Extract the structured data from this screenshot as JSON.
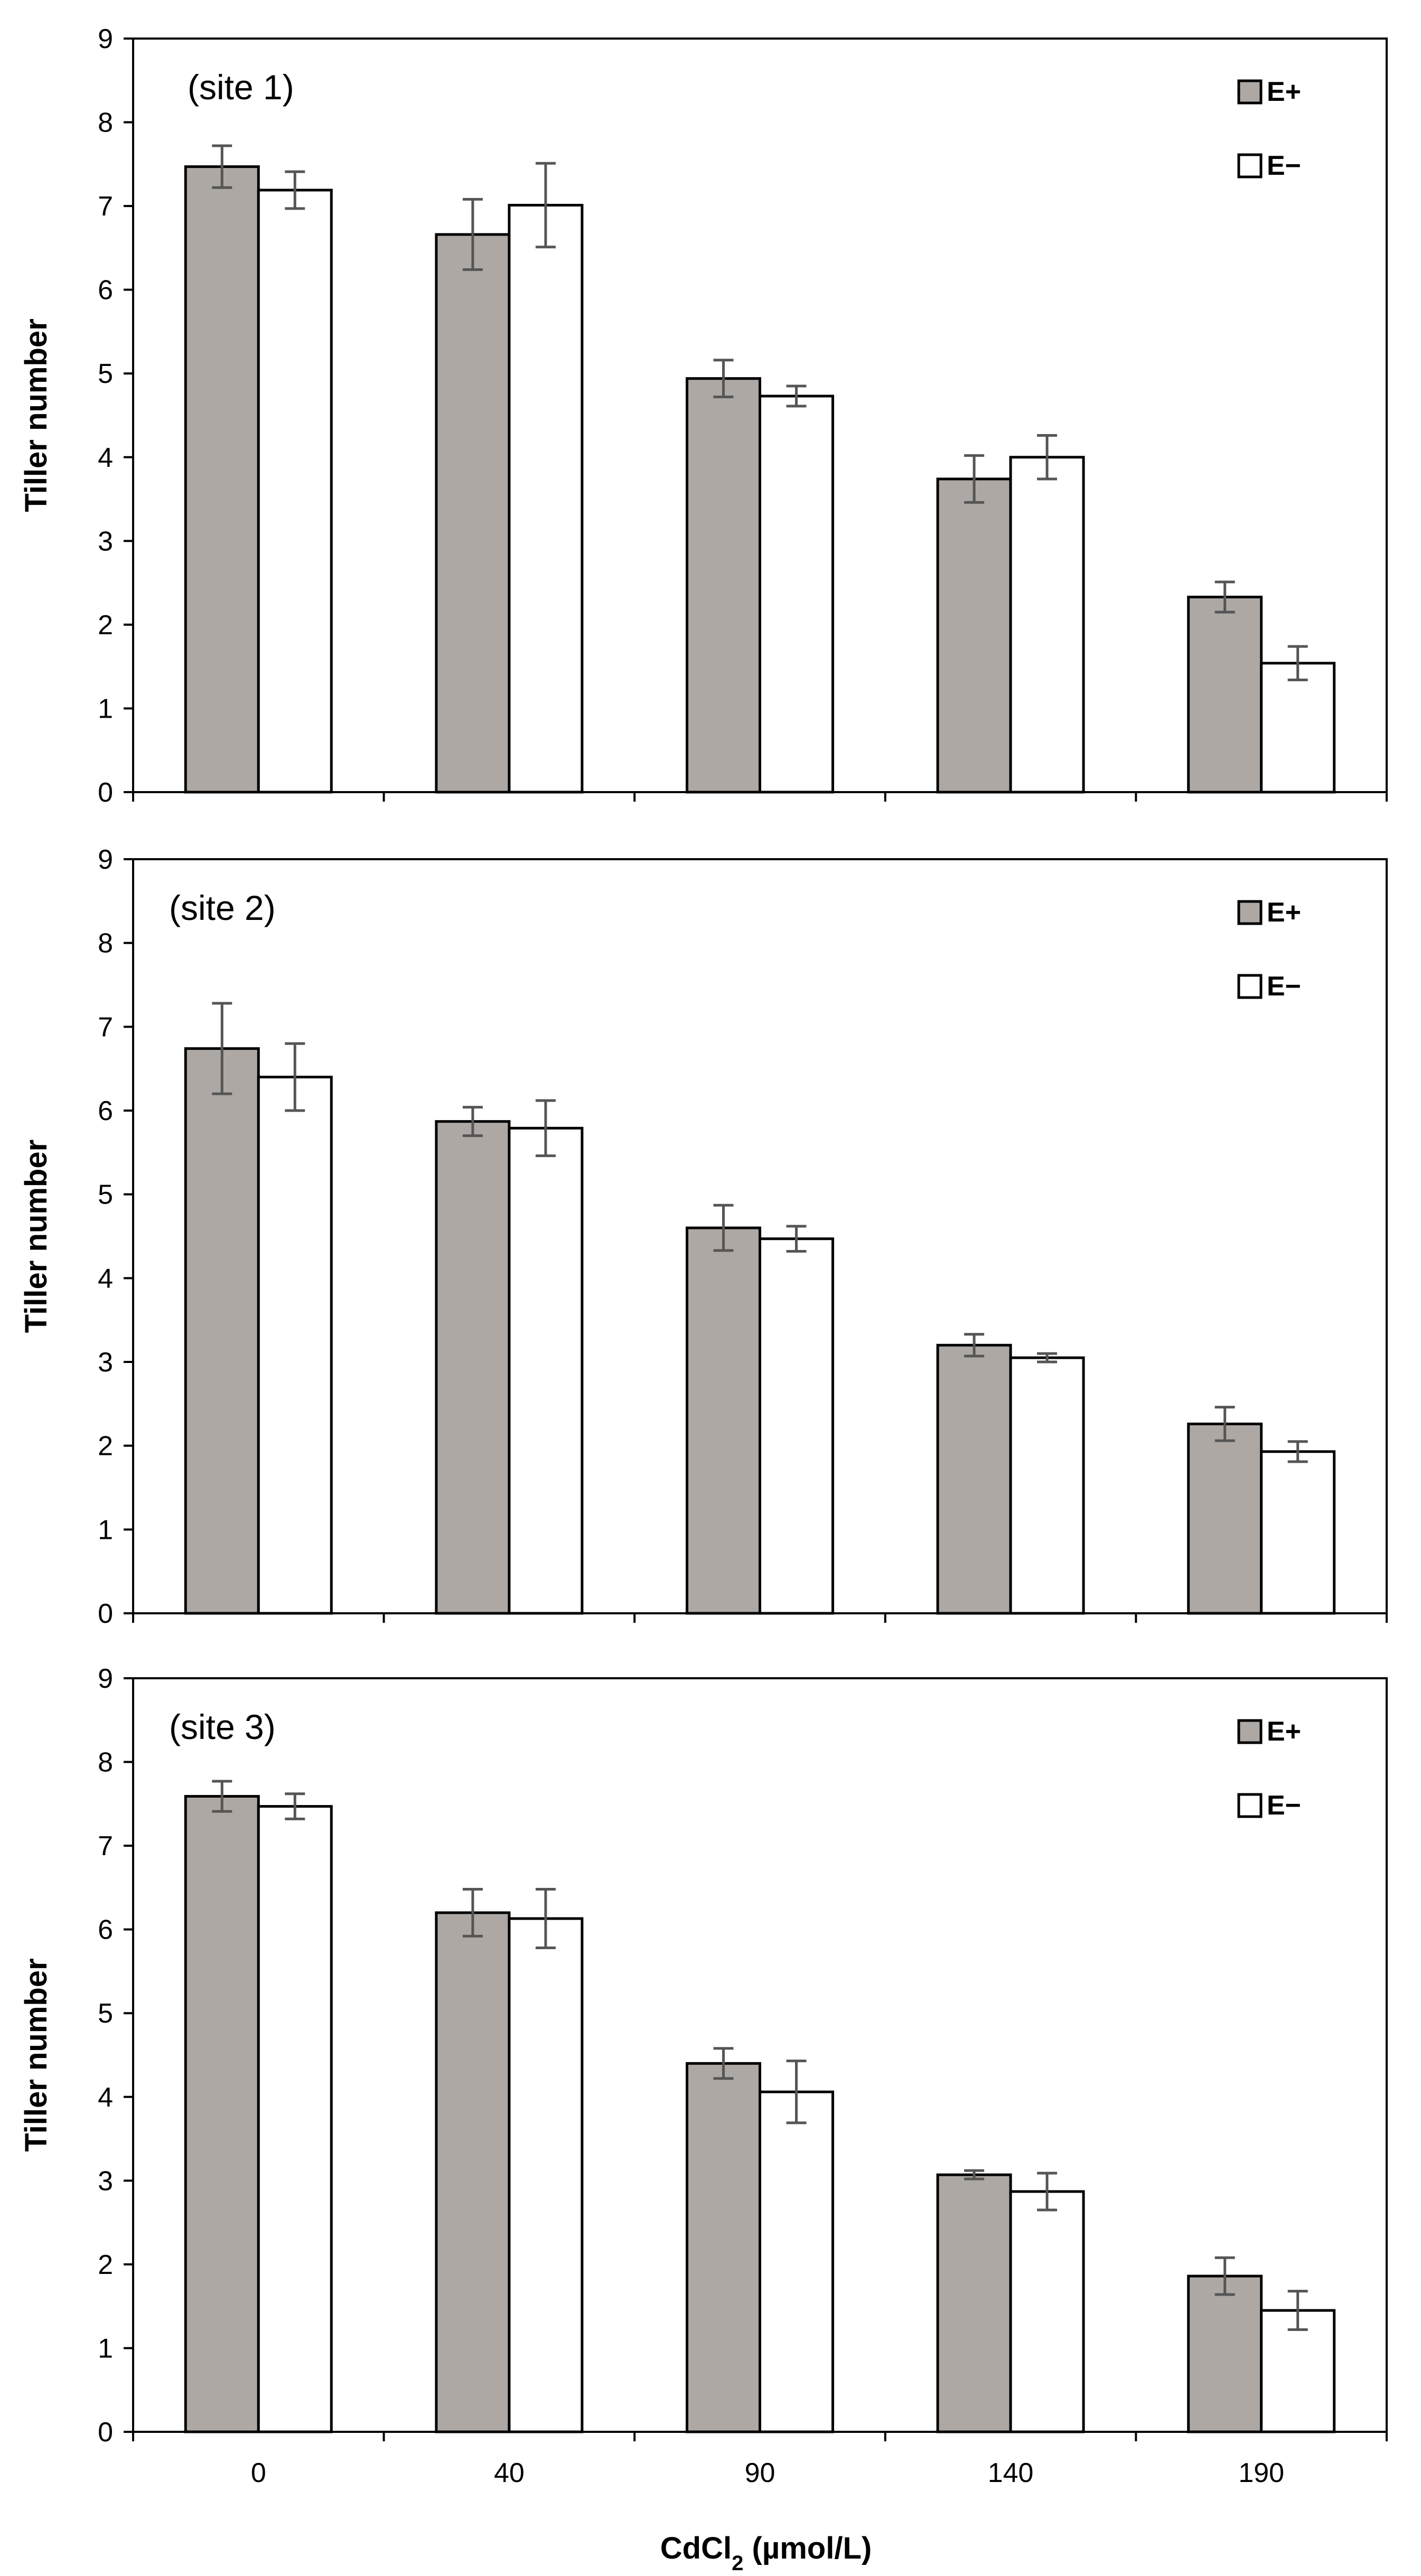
{
  "figure": {
    "xlabel_main": "CdCl",
    "xlabel_sub": "2",
    "xlabel_unit": " (µmol/L)"
  },
  "colors": {
    "e_plus": "#ada8a4",
    "e_minus": "#ffffff",
    "bar_stroke": "#000000",
    "error_bar": "#555555",
    "axis": "#000000"
  },
  "chart_data": [
    {
      "type": "bar",
      "title": "(site 1)",
      "ylabel": "Tiller number",
      "xlabel": "CdCl2 (µmol/L)",
      "ylim": [
        0,
        9
      ],
      "yticks": [
        "0",
        "1",
        "2",
        "3",
        "4",
        "5",
        "6",
        "7",
        "8",
        "9"
      ],
      "categories": [
        "0",
        "40",
        "90",
        "140",
        "190"
      ],
      "legend_position": "top-right",
      "series": [
        {
          "name": "E+",
          "values": [
            7.47,
            6.66,
            4.94,
            3.74,
            2.33
          ],
          "errors": [
            0.25,
            0.42,
            0.22,
            0.28,
            0.18
          ]
        },
        {
          "name": "E−",
          "values": [
            7.19,
            7.01,
            4.73,
            4.0,
            1.54
          ],
          "errors": [
            0.22,
            0.5,
            0.12,
            0.26,
            0.2
          ]
        }
      ]
    },
    {
      "type": "bar",
      "title": "(site 2)",
      "ylabel": "Tiller number",
      "xlabel": "CdCl2 (µmol/L)",
      "ylim": [
        0,
        9
      ],
      "yticks": [
        "0",
        "1",
        "2",
        "3",
        "4",
        "5",
        "6",
        "7",
        "8",
        "9"
      ],
      "categories": [
        "0",
        "40",
        "90",
        "140",
        "190"
      ],
      "legend_position": "top-right",
      "series": [
        {
          "name": "E+",
          "values": [
            6.74,
            5.87,
            4.6,
            3.2,
            2.26
          ],
          "errors": [
            0.54,
            0.17,
            0.27,
            0.13,
            0.2
          ]
        },
        {
          "name": "E−",
          "values": [
            6.4,
            5.79,
            4.47,
            3.05,
            1.93
          ],
          "errors": [
            0.4,
            0.33,
            0.15,
            0.05,
            0.12
          ]
        }
      ]
    },
    {
      "type": "bar",
      "title": "(site 3)",
      "ylabel": "Tiller number",
      "xlabel": "CdCl2 (µmol/L)",
      "ylim": [
        0,
        9
      ],
      "yticks": [
        "0",
        "1",
        "2",
        "3",
        "4",
        "5",
        "6",
        "7",
        "8",
        "9"
      ],
      "categories": [
        "0",
        "40",
        "90",
        "140",
        "190"
      ],
      "legend_position": "top-right",
      "series": [
        {
          "name": "E+",
          "values": [
            7.59,
            6.2,
            4.4,
            3.07,
            1.86
          ],
          "errors": [
            0.18,
            0.28,
            0.18,
            0.05,
            0.22
          ]
        },
        {
          "name": "E−",
          "values": [
            7.47,
            6.13,
            4.06,
            2.87,
            1.45
          ],
          "errors": [
            0.15,
            0.35,
            0.37,
            0.22,
            0.23
          ]
        }
      ]
    }
  ]
}
